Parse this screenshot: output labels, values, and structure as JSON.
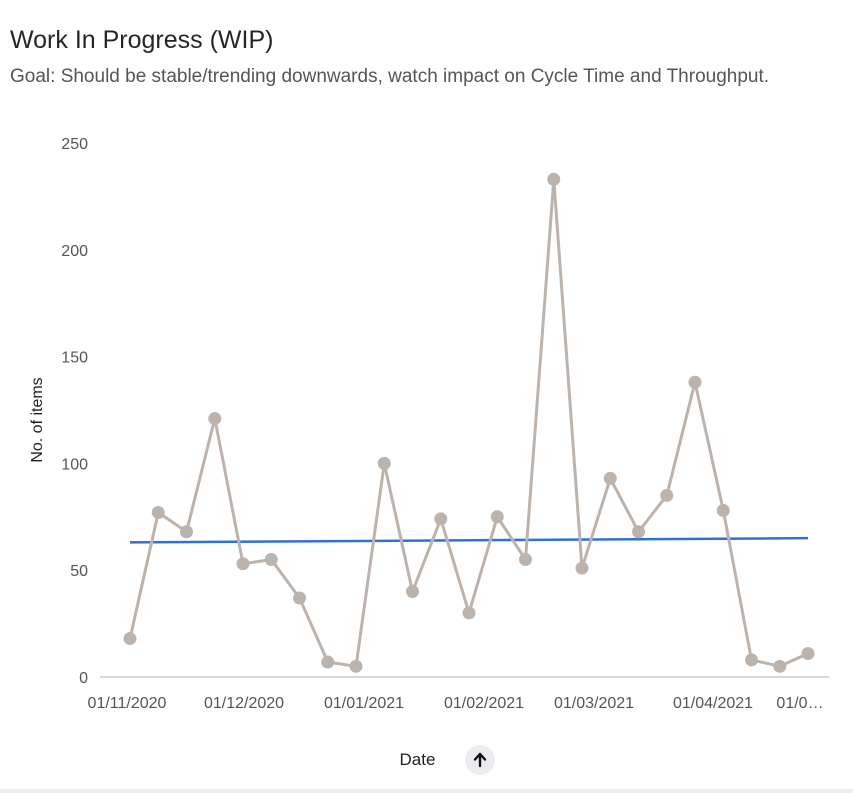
{
  "header": {
    "title": "Work In Progress (WIP)",
    "subtitle": "Goal: Should be stable/trending downwards, watch impact on Cycle Time and Throughput."
  },
  "colors": {
    "series": "#bdb3ad",
    "trend": "#2f6fd6",
    "axis": "#d9d9d9"
  },
  "sort_icon": "arrow-up-icon",
  "chart_data": {
    "type": "line",
    "title": "Work In Progress (WIP)",
    "xlabel": "Date",
    "ylabel": "No. of items",
    "ylim": [
      0,
      250
    ],
    "yticks": [
      0,
      50,
      100,
      150,
      200,
      250
    ],
    "xtick_labels": [
      "01/11/2020",
      "01/12/2020",
      "01/01/2021",
      "01/02/2021",
      "01/03/2021",
      "01/04/2021",
      "01/0…"
    ],
    "grid": false,
    "series": [
      {
        "values": [
          18,
          77,
          68,
          121,
          53,
          55,
          37,
          7,
          5,
          100,
          40,
          74,
          30,
          75,
          55,
          233,
          51,
          93,
          68,
          85,
          138,
          78,
          8,
          5,
          11
        ]
      }
    ],
    "trend_line": {
      "start": 63,
      "end": 65
    }
  }
}
